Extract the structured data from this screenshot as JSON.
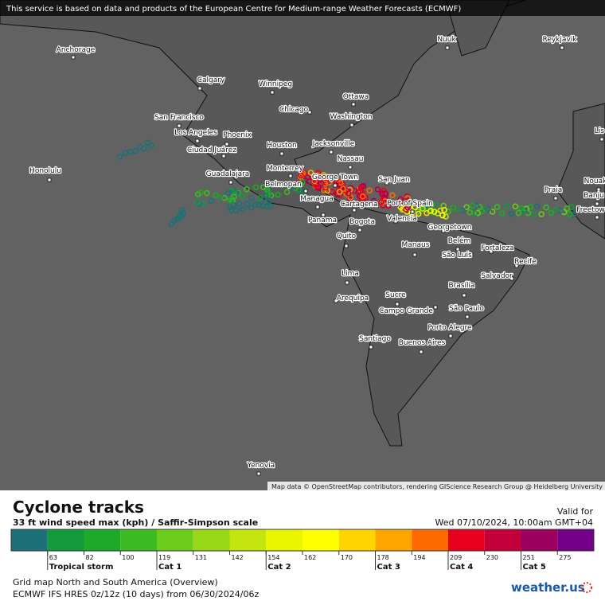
{
  "header": {
    "notice": "This service is based on data and products of the European Centre for Medium-range Weather Forecasts (ECMWF)"
  },
  "map": {
    "cities": [
      "Nuuk",
      "Reykjavik",
      "Anchorage",
      "Calgary",
      "Winnipeg",
      "Ottawa",
      "Chicago",
      "San Francisco",
      "Washington",
      "Los Angeles",
      "Phoenix",
      "Ciudad Juárez",
      "Houston",
      "Jacksonville",
      "Nassau",
      "Honolulu",
      "Guadalajara",
      "Monterrey",
      "San Juan",
      "George Town",
      "Belmopan",
      "Managua",
      "Cartagena",
      "Port of Spain",
      "Panama",
      "Bogota",
      "Valencia",
      "Georgetown",
      "Praia",
      "Nouak",
      "Banju",
      "Freetow",
      "Lis",
      "Quito",
      "Manaus",
      "Belém",
      "Fortaleza",
      "São Luís",
      "Recife",
      "Lima",
      "Salvador",
      "Brasília",
      "Sucre",
      "Arequipa",
      "São Paulo",
      "Campo Grande",
      "Porto Alegre",
      "Santiago",
      "Buenos Aires",
      "Yenovia"
    ],
    "credit": "Map data © OpenStreetMap contributors, rendering GIScience Research Group @ Heidelberg University"
  },
  "legend": {
    "title": "Cyclone tracks",
    "subtitle": "33 ft wind speed max (kph) / Saffir-Simpson scale",
    "valid_label": "Valid for",
    "valid_time": "Wed 07/10/2024, 10:00am GMT+04",
    "colors": [
      "#1d7078",
      "#139a3a",
      "#1daa28",
      "#3dbb22",
      "#6ccc1c",
      "#98d816",
      "#c4e60e",
      "#eaf500",
      "#ffff00",
      "#ffd400",
      "#ffa500",
      "#ff6a00",
      "#e6001e",
      "#c4003a",
      "#9c005e",
      "#74008a"
    ],
    "ticks": [
      63,
      82,
      100,
      119,
      131,
      142,
      154,
      162,
      170,
      178,
      194,
      209,
      230,
      251,
      275
    ],
    "categories": [
      "Tropical storm",
      "Cat 1",
      "Cat 2",
      "Cat 3",
      "Cat 4",
      "Cat 5"
    ]
  },
  "footer": {
    "grid": "Grid map North and South America (Overview)",
    "model": "ECMWF IFS HRES 0z/12z (10 days)  from  06/30/2024/06z",
    "logo": "weather.us"
  }
}
